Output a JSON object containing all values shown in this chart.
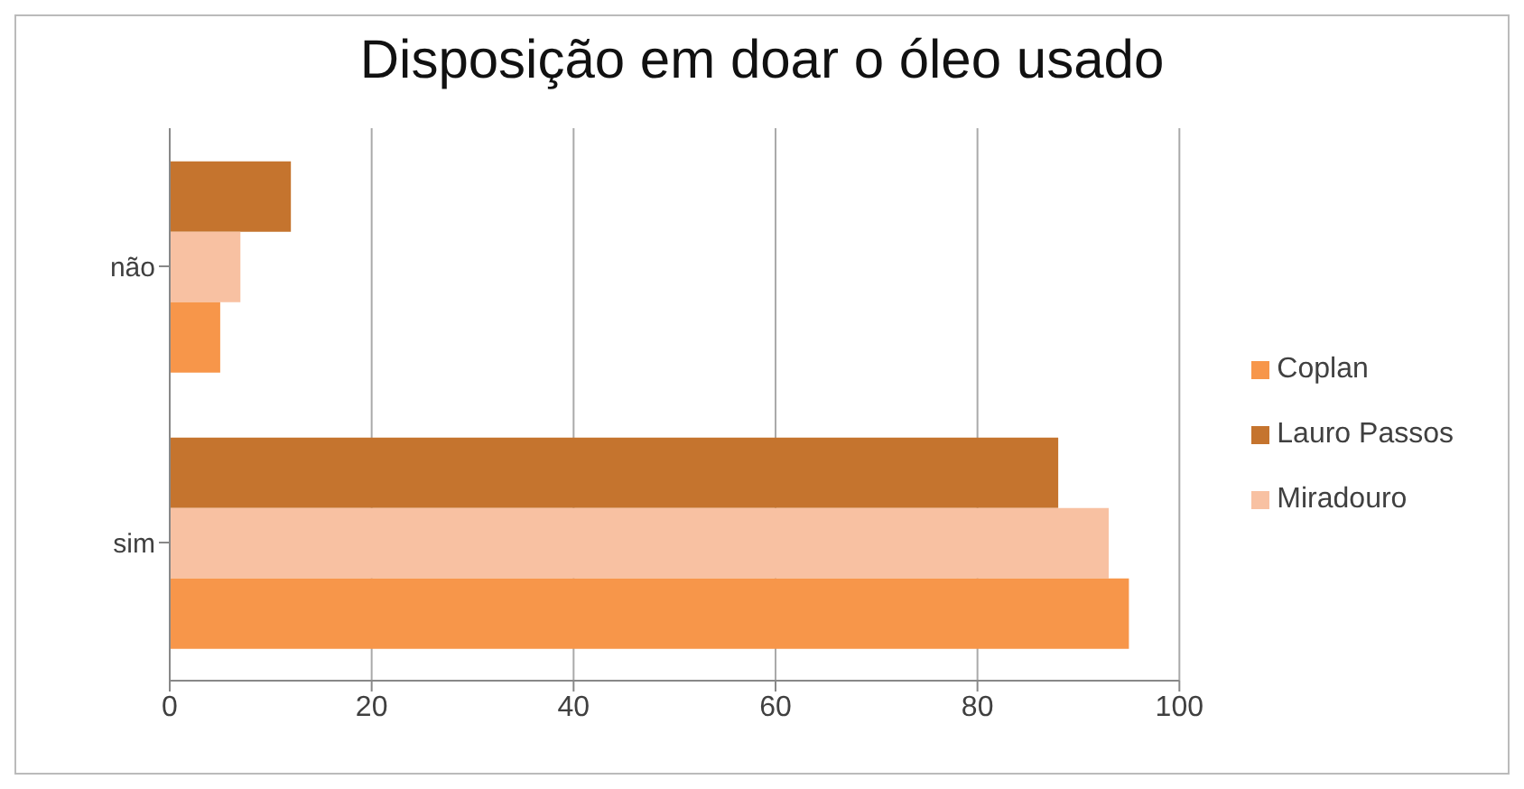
{
  "chart_data": {
    "type": "bar",
    "orientation": "horizontal",
    "title": "Disposição em doar o óleo usado",
    "categories": [
      "não",
      "sim"
    ],
    "series": [
      {
        "name": "Lauro Passos",
        "color": "#c5742e",
        "values": [
          12,
          88
        ]
      },
      {
        "name": "Miradouro",
        "color": "#f8c1a2",
        "values": [
          7,
          93
        ]
      },
      {
        "name": "Coplan",
        "color": "#f7964a",
        "values": [
          5,
          95
        ]
      }
    ],
    "xlim": [
      0,
      100
    ],
    "xticks": [
      0,
      20,
      40,
      60,
      80,
      100
    ],
    "grid": "x",
    "legend": "right"
  }
}
